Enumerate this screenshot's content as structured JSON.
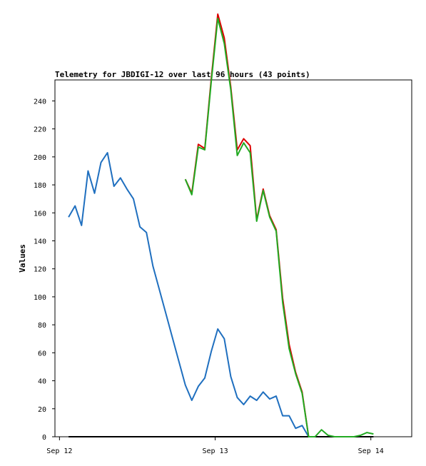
{
  "chart_data": {
    "type": "line",
    "title": "Telemetry for JBDIGI-12 over last 96 hours (43 points)",
    "xlabel": "",
    "ylabel": "Values",
    "ylim": [
      0,
      255
    ],
    "yticks": [
      0,
      20,
      40,
      60,
      80,
      100,
      120,
      140,
      160,
      180,
      200,
      220,
      240
    ],
    "xlim": [
      "Sep 12 -0.7h",
      "Sep 14 +6.3h"
    ],
    "xticks": [
      {
        "label": "Sep 12",
        "hours": 0
      },
      {
        "label": "Sep 13",
        "hours": 24
      },
      {
        "label": "Sep 14",
        "hours": 48
      }
    ],
    "grid": false,
    "series": [
      {
        "color": "#1f6fbf",
        "x": [
          1.4,
          2.4,
          3.4,
          4.4,
          5.4,
          6.4,
          7.4,
          8.4,
          9.4,
          10.4,
          11.4,
          12.4,
          13.4,
          14.4,
          15.4,
          16.4,
          17.4,
          18.4,
          19.4,
          20.4,
          21.4,
          22.4,
          23.4,
          24.4,
          25.4,
          26.4,
          27.4,
          28.4,
          29.4,
          30.4,
          31.4,
          32.4,
          33.4,
          34.4,
          35.4,
          36.4,
          37.4,
          38.4,
          39.4
        ],
        "y": [
          157,
          165,
          151,
          190,
          174,
          196,
          203,
          179,
          185,
          177,
          170,
          150,
          146,
          122,
          105,
          88,
          71,
          54,
          37,
          26,
          36,
          42,
          61,
          77,
          70,
          43,
          28,
          23,
          29,
          26,
          32,
          27,
          29,
          15,
          15,
          6,
          8,
          0,
          0
        ]
      },
      {
        "color": "#000000",
        "x": [
          1.4,
          48.4
        ],
        "y": [
          0,
          0
        ]
      },
      {
        "color": "#dd0000",
        "x": [
          19.4,
          20.4,
          21.4,
          22.4,
          23.4,
          24.4,
          25.4,
          26.4,
          27.4,
          28.4,
          29.4,
          30.4,
          31.4,
          32.4,
          33.4,
          34.4,
          35.4,
          36.4,
          37.4,
          38.4
        ],
        "y": [
          184,
          174,
          209,
          206,
          256,
          302,
          285,
          250,
          205,
          213,
          208,
          155,
          177,
          158,
          148,
          99,
          66,
          46,
          32,
          0
        ]
      },
      {
        "color": "#22aa22",
        "x": [
          19.4,
          20.4,
          21.4,
          22.4,
          23.4,
          24.4,
          25.4,
          26.4,
          27.4,
          28.4,
          29.4,
          30.4,
          31.4,
          32.4,
          33.4,
          34.4,
          35.4,
          36.4,
          37.4,
          38.4,
          39.4,
          40.4,
          41.4,
          42.4,
          43.4,
          44.4,
          45.4,
          46.4,
          47.4,
          48.4
        ],
        "y": [
          184,
          173,
          207,
          205,
          254,
          299,
          281,
          248,
          201,
          210,
          203,
          154,
          176,
          157,
          147,
          96,
          63,
          45,
          31,
          0,
          0,
          5,
          1,
          0,
          0,
          0,
          0,
          1,
          3,
          2
        ]
      }
    ]
  }
}
